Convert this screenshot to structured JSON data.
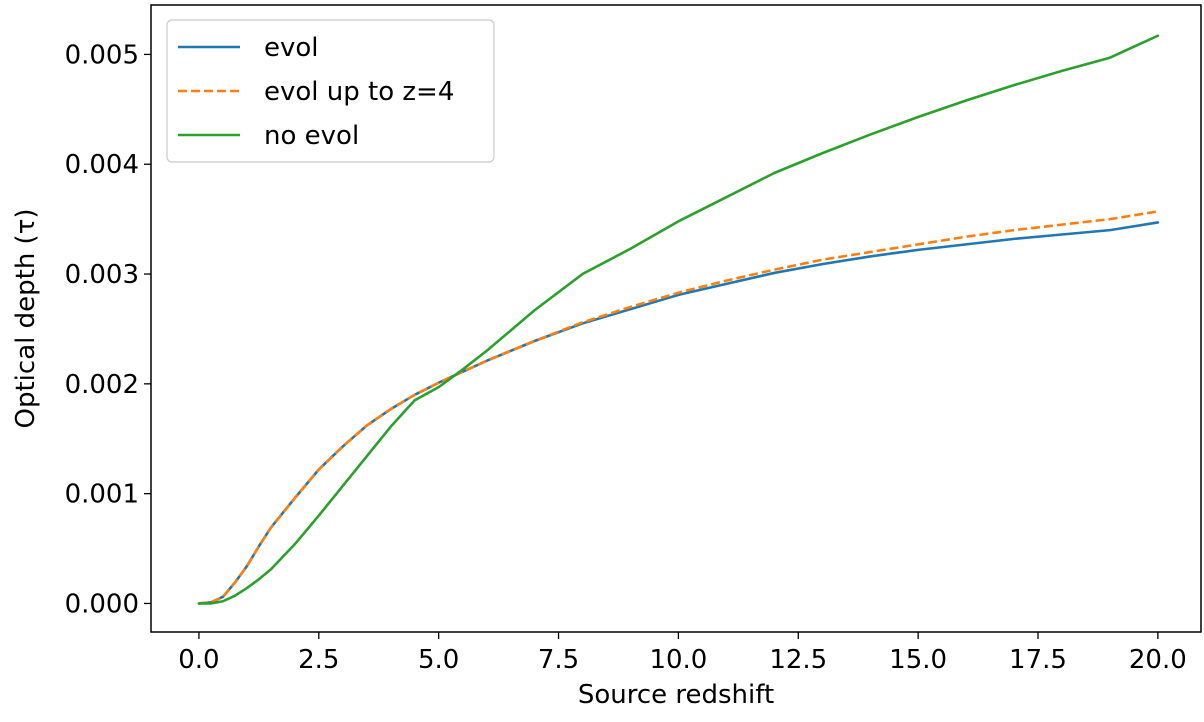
{
  "chart_data": {
    "type": "line",
    "xlabel": "Source redshift",
    "ylabel": "Optical depth (τ)",
    "xlim": [
      -1.0,
      20.9
    ],
    "ylim": [
      -0.00026,
      0.00545
    ],
    "xticks": [
      0.0,
      2.5,
      5.0,
      7.5,
      10.0,
      12.5,
      15.0,
      17.5,
      20.0
    ],
    "xtick_labels": [
      "0.0",
      "2.5",
      "5.0",
      "7.5",
      "10.0",
      "12.5",
      "15.0",
      "17.5",
      "20.0"
    ],
    "yticks": [
      0.0,
      0.001,
      0.002,
      0.003,
      0.004,
      0.005
    ],
    "ytick_labels": [
      "0.000",
      "0.001",
      "0.002",
      "0.003",
      "0.004",
      "0.005"
    ],
    "grid": false,
    "legend_position": "upper-left",
    "series": [
      {
        "name": "evol",
        "color": "#1f77b4",
        "style": "solid",
        "x": [
          0.0,
          0.25,
          0.5,
          0.75,
          1.0,
          1.25,
          1.5,
          2.0,
          2.5,
          3.0,
          3.5,
          4.0,
          4.5,
          5.0,
          5.5,
          6.0,
          7.0,
          8.0,
          9.0,
          10.0,
          11.0,
          12.0,
          13.0,
          14.0,
          15.0,
          16.0,
          17.0,
          18.0,
          19.0,
          20.0
        ],
        "y": [
          0.0,
          1e-05,
          6e-05,
          0.00019,
          0.00034,
          0.00052,
          0.00069,
          0.00096,
          0.00122,
          0.00143,
          0.00162,
          0.00177,
          0.0019,
          0.00201,
          0.00211,
          0.00221,
          0.00239,
          0.00255,
          0.00268,
          0.00281,
          0.00291,
          0.00301,
          0.00309,
          0.00316,
          0.00322,
          0.00327,
          0.00332,
          0.00336,
          0.0034,
          0.00347
        ]
      },
      {
        "name": "evol up to z=4",
        "color": "#ff7f0e",
        "style": "dashed",
        "x": [
          0.0,
          0.25,
          0.5,
          0.75,
          1.0,
          1.25,
          1.5,
          2.0,
          2.5,
          3.0,
          3.5,
          4.0,
          4.5,
          5.0,
          5.5,
          6.0,
          7.0,
          8.0,
          9.0,
          10.0,
          11.0,
          12.0,
          13.0,
          14.0,
          15.0,
          16.0,
          17.0,
          18.0,
          19.0,
          20.0
        ],
        "y": [
          0.0,
          1e-05,
          6e-05,
          0.00019,
          0.00034,
          0.00052,
          0.00069,
          0.00096,
          0.00122,
          0.00143,
          0.00162,
          0.00177,
          0.0019,
          0.00201,
          0.00211,
          0.00221,
          0.00239,
          0.00256,
          0.0027,
          0.00283,
          0.00294,
          0.00304,
          0.00313,
          0.0032,
          0.00327,
          0.00334,
          0.0034,
          0.00345,
          0.0035,
          0.00357
        ]
      },
      {
        "name": "no evol",
        "color": "#2ca02c",
        "style": "solid",
        "x": [
          0.0,
          0.25,
          0.5,
          0.75,
          1.0,
          1.25,
          1.5,
          2.0,
          2.5,
          3.0,
          3.5,
          4.0,
          4.5,
          5.0,
          5.5,
          6.0,
          7.0,
          8.0,
          9.0,
          10.0,
          11.0,
          12.0,
          13.0,
          14.0,
          15.0,
          16.0,
          17.0,
          18.0,
          19.0,
          20.0
        ],
        "y": [
          0.0,
          0.0,
          2e-05,
          7e-05,
          0.00014,
          0.00022,
          0.00031,
          0.00054,
          0.0008,
          0.00107,
          0.00134,
          0.00161,
          0.00185,
          0.00197,
          0.00213,
          0.0023,
          0.00267,
          0.003,
          0.00323,
          0.00348,
          0.0037,
          0.00392,
          0.0041,
          0.00427,
          0.00443,
          0.00458,
          0.00472,
          0.00485,
          0.00497,
          0.00517
        ]
      }
    ]
  }
}
